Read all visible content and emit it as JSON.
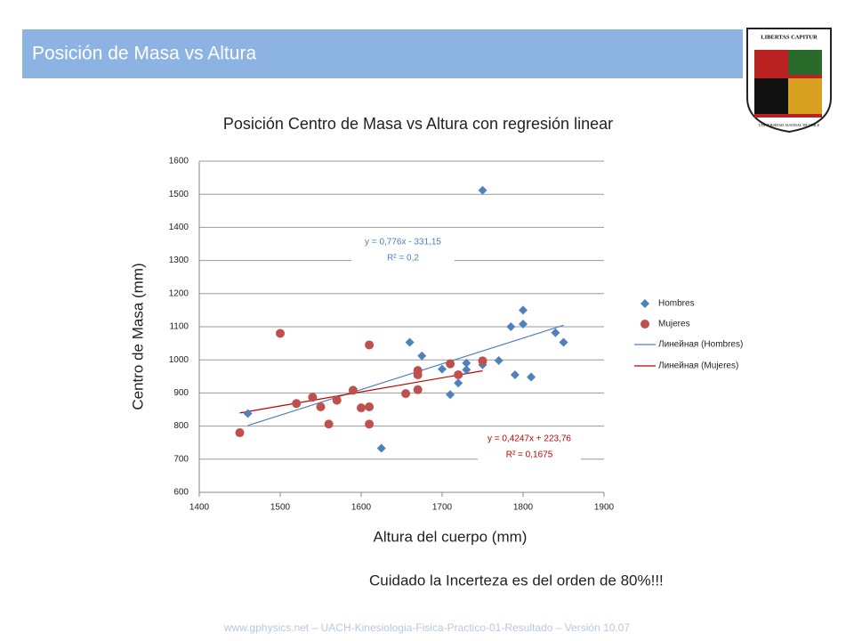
{
  "slide": {
    "title": "Posición de Masa vs Altura",
    "note": "Cuidado la Incerteza es del orden de 80%!!!",
    "footer": "www.gphysics.net – UACH-Kinesiologia-Fisica-Practico-01-Resultado – Versión 10.07",
    "logo_top": "LIBERTAS CAPITUR",
    "logo_bottom": "UNIVERSIDAD AUSTRAL DE CHILE"
  },
  "chart_data": {
    "type": "scatter",
    "title": "Posición Centro de Masa vs Altura con regresión linear",
    "x_label": "Altura del cuerpo (mm)",
    "y_label": "Centro de Masa (mm)",
    "xlim": [
      1400,
      1900
    ],
    "xticks": [
      1400,
      1500,
      1600,
      1700,
      1800,
      1900
    ],
    "ylim": [
      600,
      1600
    ],
    "yticks": [
      600,
      700,
      800,
      900,
      1000,
      1100,
      1200,
      1300,
      1400,
      1500,
      1600
    ],
    "grid": true,
    "legend": "right",
    "series": [
      {
        "name": "Hombres",
        "color": "#4f81bd",
        "marker": "diamond",
        "x": [
          1460,
          1625,
          1660,
          1675,
          1700,
          1710,
          1720,
          1730,
          1730,
          1750,
          1750,
          1770,
          1785,
          1790,
          1800,
          1800,
          1810,
          1840,
          1850
        ],
        "values": [
          838,
          733,
          1053,
          1012,
          972,
          895,
          930,
          990,
          970,
          985,
          1512,
          998,
          1100,
          955,
          1108,
          1150,
          948,
          1082,
          1053
        ]
      },
      {
        "name": "Mujeres",
        "color": "#c0504d",
        "marker": "circle",
        "x": [
          1450,
          1500,
          1520,
          1540,
          1550,
          1560,
          1570,
          1590,
          1600,
          1610,
          1610,
          1610,
          1655,
          1670,
          1670,
          1670,
          1710,
          1720,
          1750
        ],
        "values": [
          780,
          1080,
          868,
          887,
          858,
          806,
          878,
          908,
          855,
          858,
          806,
          1045,
          898,
          968,
          955,
          910,
          988,
          955,
          997
        ]
      }
    ],
    "trendlines": [
      {
        "name": "Линейная (Hombres)",
        "color": "#4f81bd",
        "slope": 0.776,
        "intercept": -331.15,
        "x": [
          1460,
          1850
        ],
        "equation": "y = 0,776x - 331,15",
        "r2": "R² = 0,2"
      },
      {
        "name": "Линейная (Mujeres)",
        "color": "#c00000",
        "slope": 0.4247,
        "intercept": 223.76,
        "x": [
          1450,
          1750
        ],
        "equation": "y = 0,4247x + 223,76",
        "r2": "R² = 0,1675"
      }
    ]
  }
}
